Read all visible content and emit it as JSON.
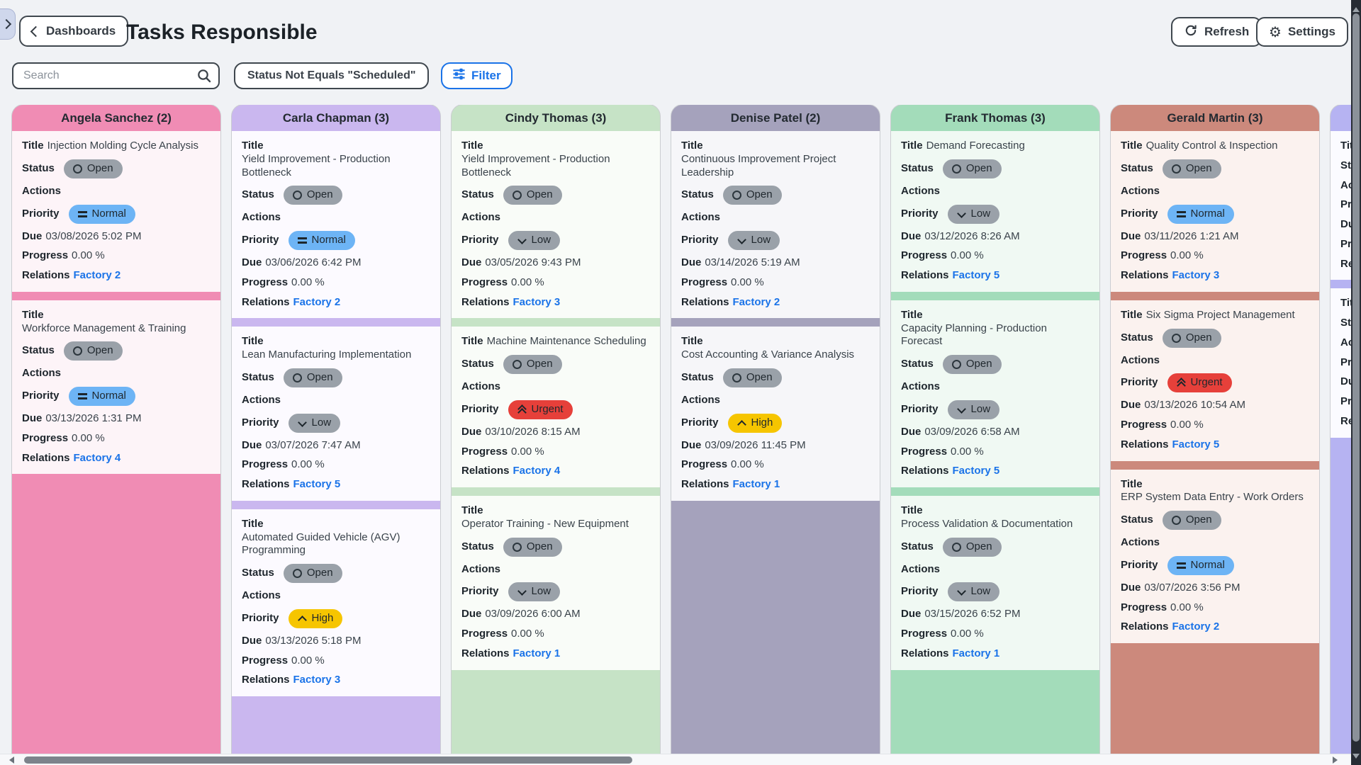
{
  "header": {
    "back_label": "Dashboards",
    "title": "Tasks Responsible",
    "refresh_label": "Refresh",
    "settings_label": "Settings"
  },
  "filters": {
    "search_placeholder": "Search",
    "filter_chip": "Status Not Equals \"Scheduled\"",
    "filter_button_label": "Filter"
  },
  "field_labels": {
    "title": "Title",
    "status": "Status",
    "actions": "Actions",
    "priority": "Priority",
    "due": "Due",
    "progress": "Progress",
    "relations": "Relations"
  },
  "icons": {
    "back": "chevron-left",
    "expand_handle": "chevron-right",
    "search": "magnifier",
    "filter": "sliders",
    "refresh": "refresh-arrows",
    "settings": "gear",
    "status_open": "circle-outline",
    "priority_normal": "equals",
    "priority_low": "chevron-down",
    "priority_high": "chevron-up",
    "priority_urgent": "double-chevron-up"
  },
  "pills": {
    "status": {
      "Open": {
        "color": "#9aa1a9",
        "icon": "circle-outline"
      }
    },
    "priority": {
      "Normal": {
        "color": "#6db4f5",
        "icon": "equals"
      },
      "Low": {
        "color": "#9aa1a9",
        "icon": "chevron-down"
      },
      "High": {
        "color": "#f6c500",
        "icon": "chevron-up"
      },
      "Urgent": {
        "color": "#e6403a",
        "icon": "double-chevron-up"
      }
    }
  },
  "colors": {
    "page_bg": "#f0f2f5",
    "accent_blue": "#1a73e8",
    "button_border": "#3f474e",
    "link": "#1a73e8"
  },
  "columns": [
    {
      "name": "Angela Sanchez (2)",
      "accent": "#f08cb4",
      "card_bg": "#fdf4f8",
      "cards": [
        {
          "title": "Injection Molding Cycle Analysis",
          "status": "Open",
          "priority": "Normal",
          "due": "03/08/2026 5:02 PM",
          "progress": "0.00 %",
          "relation": "Factory 2"
        },
        {
          "title": "Workforce Management & Training",
          "status": "Open",
          "priority": "Normal",
          "due": "03/13/2026 1:31 PM",
          "progress": "0.00 %",
          "relation": "Factory 4"
        }
      ]
    },
    {
      "name": "Carla Chapman (3)",
      "accent": "#cab7ef",
      "card_bg": "#fcfaff",
      "cards": [
        {
          "title": "Yield Improvement - Production Bottleneck",
          "status": "Open",
          "priority": "Normal",
          "due": "03/06/2026 6:42 PM",
          "progress": "0.00 %",
          "relation": "Factory 2"
        },
        {
          "title": "Lean Manufacturing Implementation",
          "status": "Open",
          "priority": "Low",
          "due": "03/07/2026 7:47 AM",
          "progress": "0.00 %",
          "relation": "Factory 5"
        },
        {
          "title": "Automated Guided Vehicle (AGV) Programming",
          "status": "Open",
          "priority": "High",
          "due": "03/13/2026 5:18 PM",
          "progress": "0.00 %",
          "relation": "Factory 3"
        }
      ]
    },
    {
      "name": "Cindy Thomas (3)",
      "accent": "#c6e3c6",
      "card_bg": "#f9fcf8",
      "cards": [
        {
          "title": "Yield Improvement - Production Bottleneck",
          "status": "Open",
          "priority": "Low",
          "due": "03/05/2026 9:43 PM",
          "progress": "0.00 %",
          "relation": "Factory 3"
        },
        {
          "title": "Machine Maintenance Scheduling",
          "status": "Open",
          "priority": "Urgent",
          "due": "03/10/2026 8:15 AM",
          "progress": "0.00 %",
          "relation": "Factory 4"
        },
        {
          "title": "Operator Training - New Equipment",
          "status": "Open",
          "priority": "Low",
          "due": "03/09/2026 6:00 AM",
          "progress": "0.00 %",
          "relation": "Factory 1"
        }
      ]
    },
    {
      "name": "Denise Patel (2)",
      "accent": "#a5a2bc",
      "card_bg": "#f6f6f9",
      "cards": [
        {
          "title": "Continuous Improvement Project Leadership",
          "status": "Open",
          "priority": "Low",
          "due": "03/14/2026 5:19 AM",
          "progress": "0.00 %",
          "relation": "Factory 2"
        },
        {
          "title": "Cost Accounting & Variance Analysis",
          "status": "Open",
          "priority": "High",
          "due": "03/09/2026 11:45 PM",
          "progress": "0.00 %",
          "relation": "Factory 1"
        }
      ]
    },
    {
      "name": "Frank Thomas (3)",
      "accent": "#a3dcba",
      "card_bg": "#f0f9f3",
      "cards": [
        {
          "title": "Demand Forecasting",
          "status": "Open",
          "priority": "Low",
          "due": "03/12/2026 8:26 AM",
          "progress": "0.00 %",
          "relation": "Factory 5"
        },
        {
          "title": "Capacity Planning - Production Forecast",
          "status": "Open",
          "priority": "Low",
          "due": "03/09/2026 6:58 AM",
          "progress": "0.00 %",
          "relation": "Factory 5"
        },
        {
          "title": "Process Validation & Documentation",
          "status": "Open",
          "priority": "Low",
          "due": "03/15/2026 6:52 PM",
          "progress": "0.00 %",
          "relation": "Factory 1"
        }
      ]
    },
    {
      "name": "Gerald Martin (3)",
      "accent": "#cc897c",
      "card_bg": "#fbf2ef",
      "cards": [
        {
          "title": "Quality Control & Inspection",
          "status": "Open",
          "priority": "Normal",
          "due": "03/11/2026 1:21 AM",
          "progress": "0.00 %",
          "relation": "Factory 3"
        },
        {
          "title": "Six Sigma Project Management",
          "status": "Open",
          "priority": "Urgent",
          "due": "03/13/2026 10:54 AM",
          "progress": "0.00 %",
          "relation": "Factory 5"
        },
        {
          "title": "ERP System Data Entry - Work Orders",
          "status": "Open",
          "priority": "Normal",
          "due": "03/07/2026 3:56 PM",
          "progress": "0.00 %",
          "relation": "Factory 2"
        }
      ]
    },
    {
      "name": "",
      "accent": "#b6b3f2",
      "card_bg": "#fbfbff",
      "cards": [
        {
          "title": "",
          "status": "",
          "priority": "",
          "due": "",
          "progress": "",
          "relation": ""
        },
        {
          "title": "",
          "status": "",
          "priority": "",
          "due": "",
          "progress": "",
          "relation": ""
        }
      ]
    }
  ]
}
